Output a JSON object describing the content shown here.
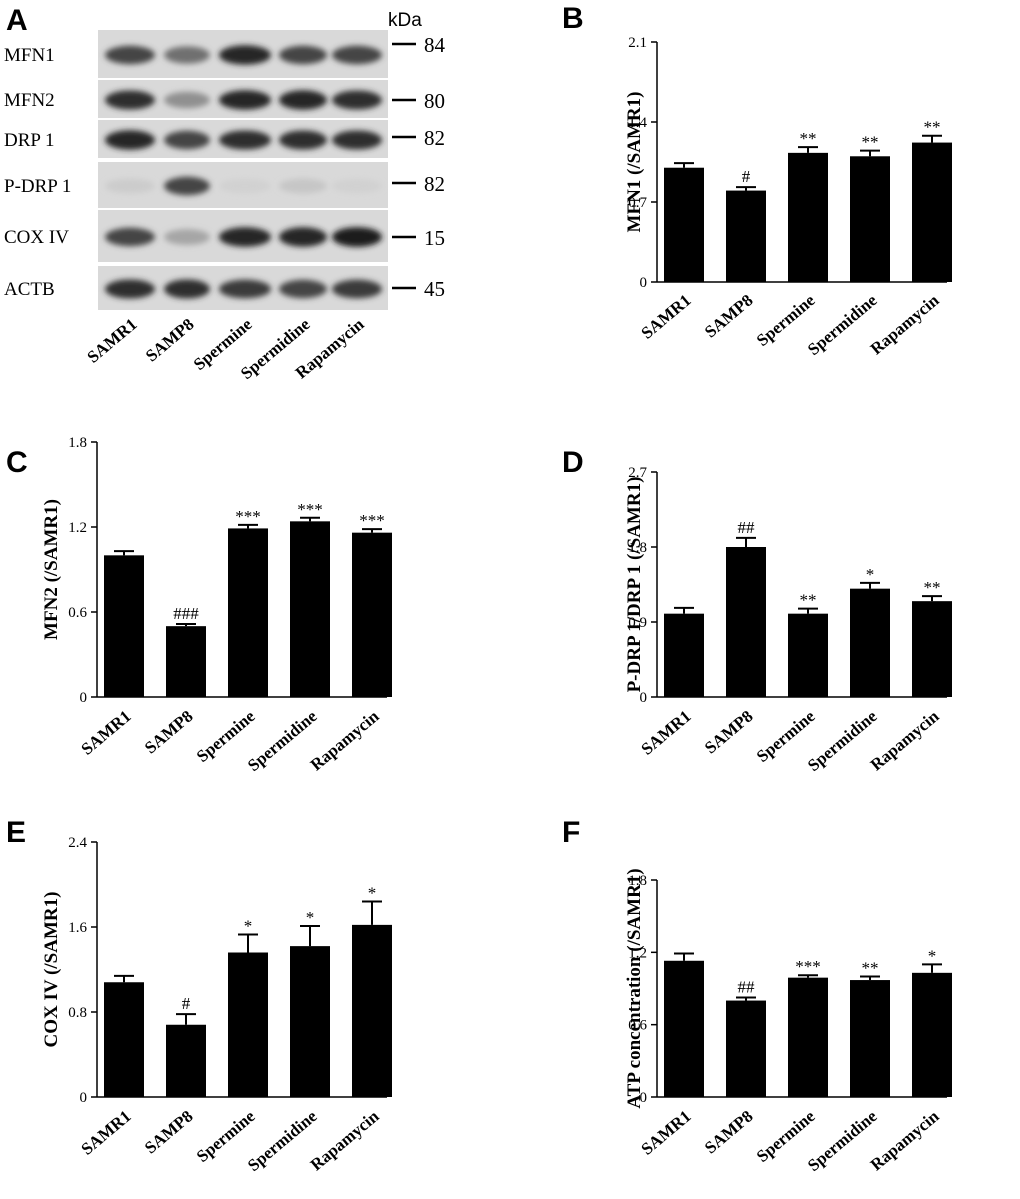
{
  "figure": {
    "blot": {
      "letter": "A",
      "kda_header": "kDa",
      "lanes": [
        "SAMR1",
        "SAMP8",
        "Spermine",
        "Spermidine",
        "Rapamycin"
      ],
      "rows": [
        {
          "label": "MFN1",
          "kda": "84",
          "intensity": [
            0.75,
            0.55,
            0.9,
            0.75,
            0.75
          ]
        },
        {
          "label": "MFN2",
          "kda": "80",
          "intensity": [
            0.85,
            0.4,
            0.9,
            0.9,
            0.85
          ]
        },
        {
          "label": "DRP 1",
          "kda": "82",
          "intensity": [
            0.9,
            0.75,
            0.85,
            0.85,
            0.85
          ]
        },
        {
          "label": "P-DRP 1",
          "kda": "82",
          "intensity": [
            0.12,
            0.75,
            0.1,
            0.15,
            0.1
          ]
        },
        {
          "label": "COX IV",
          "kda": "15",
          "intensity": [
            0.75,
            0.3,
            0.9,
            0.9,
            0.95
          ]
        },
        {
          "label": "ACTB",
          "kda": "45",
          "intensity": [
            0.85,
            0.85,
            0.8,
            0.75,
            0.8
          ]
        }
      ]
    }
  },
  "chart_data": [
    {
      "panel": "B",
      "type": "bar",
      "categories": [
        "SAMR1",
        "SAMP8",
        "Spermine",
        "Spermidine",
        "Rapamycin"
      ],
      "values": [
        1.0,
        0.8,
        1.13,
        1.1,
        1.22
      ],
      "errors": [
        0.04,
        0.03,
        0.05,
        0.05,
        0.06
      ],
      "significance": [
        "",
        "#",
        "**",
        "**",
        "**"
      ],
      "ylabel": "MFN1 (/SAMR1)",
      "ylim": [
        0,
        2.1
      ],
      "yticks": [
        "0",
        "0.7",
        "1.4",
        "2.1"
      ]
    },
    {
      "panel": "C",
      "type": "bar",
      "categories": [
        "SAMR1",
        "SAMP8",
        "Spermine",
        "Spermidine",
        "Rapamycin"
      ],
      "values": [
        1.0,
        0.5,
        1.19,
        1.24,
        1.16
      ],
      "errors": [
        0.03,
        0.015,
        0.025,
        0.025,
        0.025
      ],
      "significance": [
        "",
        "###",
        "***",
        "***",
        "***"
      ],
      "ylabel": "MFN2 (/SAMR1)",
      "ylim": [
        0,
        1.8
      ],
      "yticks": [
        "0",
        "0.6",
        "1.2",
        "1.8"
      ]
    },
    {
      "panel": "D",
      "type": "bar",
      "categories": [
        "SAMR1",
        "SAMP8",
        "Spermine",
        "Spermidine",
        "Rapamycin"
      ],
      "values": [
        1.0,
        1.8,
        1.0,
        1.3,
        1.15
      ],
      "errors": [
        0.07,
        0.11,
        0.06,
        0.07,
        0.06
      ],
      "significance": [
        "",
        "##",
        "**",
        "*",
        "**"
      ],
      "ylabel": "P-DRP 1/DRP 1 (/SAMR1)",
      "ylim": [
        0,
        2.7
      ],
      "yticks": [
        "0",
        "0.9",
        "1.8",
        "2.7"
      ]
    },
    {
      "panel": "E",
      "type": "bar",
      "categories": [
        "SAMR1",
        "SAMP8",
        "Spermine",
        "Spermidine",
        "Rapamycin"
      ],
      "values": [
        1.08,
        0.68,
        1.36,
        1.42,
        1.62
      ],
      "errors": [
        0.06,
        0.1,
        0.17,
        0.19,
        0.22
      ],
      "significance": [
        "",
        "#",
        "*",
        "*",
        "*"
      ],
      "ylabel": "COX IV (/SAMR1)",
      "ylim": [
        0,
        2.4
      ],
      "yticks": [
        "0",
        "0.8",
        "1.6",
        "2.4"
      ]
    },
    {
      "panel": "F",
      "type": "bar",
      "categories": [
        "SAMR1",
        "SAMP8",
        "Spermine",
        "Spermidine",
        "Rapamycin"
      ],
      "values": [
        1.13,
        0.8,
        0.99,
        0.97,
        1.03
      ],
      "errors": [
        0.06,
        0.025,
        0.02,
        0.03,
        0.07
      ],
      "significance": [
        "",
        "##",
        "***",
        "**",
        "*"
      ],
      "ylabel": "ATP concentration (/SAMR1)",
      "ylim": [
        0,
        1.8
      ],
      "yticks": [
        "0",
        "0.6",
        "1.2",
        "1.8"
      ]
    }
  ]
}
